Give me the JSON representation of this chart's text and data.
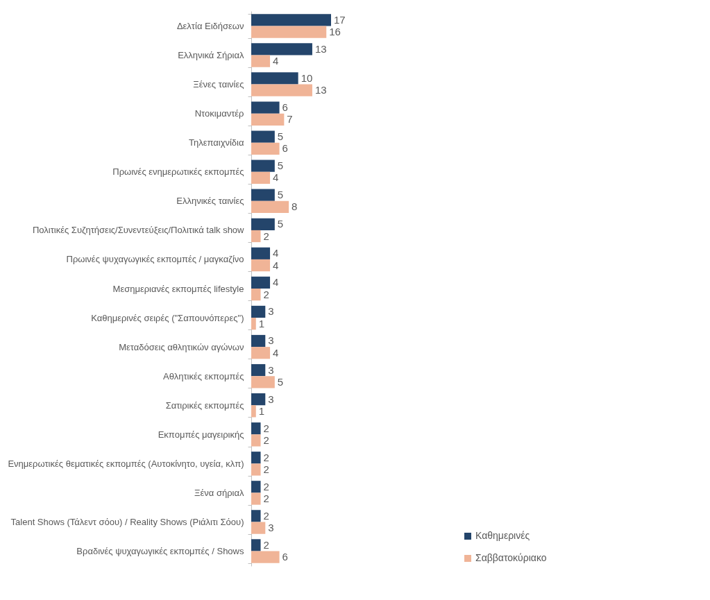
{
  "chart_data": {
    "type": "bar",
    "orientation": "horizontal",
    "categories": [
      "Δελτία Ειδήσεων",
      "Ελληνικά Σήριαλ",
      "Ξένες ταινίες",
      "Ντοκιμαντέρ",
      "Τηλεπαιχνίδια",
      "Πρωινές ενημερωτικές εκπομπές",
      "Ελληνικές ταινίες",
      "Πολιτικές Συζητήσεις/Συνεντεύξεις/Πολιτικά talk show",
      "Πρωινές ψυχαγωγικές εκπομπές / μαγκαζίνο",
      "Μεσημεριανές εκπομπές lifestyle",
      "Καθημερινές σειρές (\"Σαπουνόπερες\")",
      "Μεταδόσεις αθλητικών αγώνων",
      "Αθλητικές εκπομπές",
      "Σατιρικές εκπομπές",
      "Εκπομπές μαγειρικής",
      "Ενημερωτικές θεματικές εκπομπές (Αυτοκίνητο, υγεία, κλπ)",
      "Ξένα σήριαλ",
      "Talent Shows (Τάλεντ σόου) / Reality Shows (Ριάλιτι Σόου)",
      "Βραδινές ψυχαγωγικές εκπομπές / Shows"
    ],
    "series": [
      {
        "name": "Καθημερινές",
        "color": "#24456b",
        "values": [
          17,
          13,
          10,
          6,
          5,
          5,
          5,
          5,
          4,
          4,
          3,
          3,
          3,
          3,
          2,
          2,
          2,
          2,
          2
        ]
      },
      {
        "name": "Σαββατοκύριακο",
        "color": "#f0b497",
        "values": [
          16,
          4,
          13,
          7,
          6,
          4,
          8,
          2,
          4,
          2,
          1,
          4,
          5,
          1,
          2,
          2,
          2,
          3,
          6
        ]
      }
    ],
    "data_labels": true,
    "legend": "bottom right"
  }
}
